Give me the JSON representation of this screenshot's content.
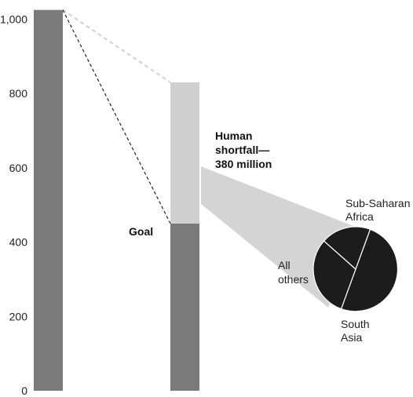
{
  "chart_data": {
    "type": "bar",
    "ylim": [
      0,
      1000
    ],
    "yticks": [
      {
        "value": 0,
        "label": "0"
      },
      {
        "value": 200,
        "label": "200"
      },
      {
        "value": 400,
        "label": "400"
      },
      {
        "value": 600,
        "label": "600"
      },
      {
        "value": 800,
        "label": "800"
      },
      {
        "value": 1000,
        "label": "1,000"
      }
    ],
    "bars": [
      {
        "total": 1025,
        "segments": [
          {
            "value": 1025,
            "color": "#7a7a7a"
          }
        ]
      },
      {
        "total": 830,
        "segments": [
          {
            "value": 450,
            "color": "#7a7a7a"
          },
          {
            "value": 380,
            "color": "#cfcfcf"
          }
        ]
      }
    ],
    "annotations": {
      "goal": "Goal",
      "shortfall": [
        "Human",
        "shortfall—",
        "380 million"
      ]
    },
    "pie": {
      "slices": [
        {
          "name_lines": [
            "Sub-Saharan",
            "Africa"
          ],
          "share": 0.5
        },
        {
          "name_lines": [
            "South",
            "Asia"
          ],
          "share": 0.31
        },
        {
          "name_lines": [
            "All",
            "others"
          ],
          "share": 0.19
        }
      ],
      "fill": "#1c1c1c",
      "stroke": "#ffffff"
    },
    "colors": {
      "bar_dark": "#7a7a7a",
      "bar_light": "#cfcfcf",
      "guide_light": "#cfcfcf",
      "guide_dark": "#222222",
      "wedge": "#d4d4d4"
    }
  }
}
